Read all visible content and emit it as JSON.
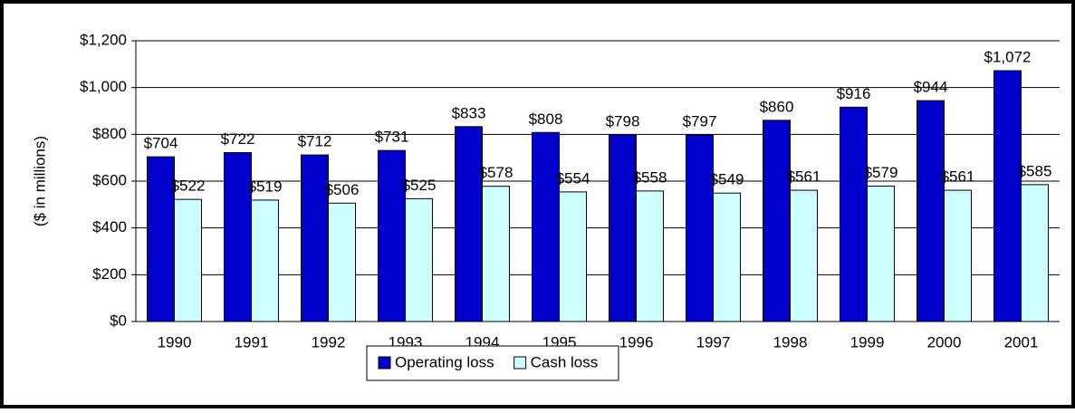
{
  "chart_data": {
    "type": "bar",
    "y_label": "($ in millions)",
    "categories": [
      "1990",
      "1991",
      "1992",
      "1993",
      "1994",
      "1995",
      "1996",
      "1997",
      "1998",
      "1999",
      "2000",
      "2001"
    ],
    "series": [
      {
        "name": "Operating loss",
        "color": "#0000cc",
        "values": [
          704,
          722,
          712,
          731,
          833,
          808,
          798,
          797,
          860,
          916,
          944,
          1072
        ],
        "value_labels": [
          "$704",
          "$722",
          "$712",
          "$731",
          "$833",
          "$808",
          "$798",
          "$797",
          "$860",
          "$916",
          "$944",
          "$1,072"
        ]
      },
      {
        "name": "Cash loss",
        "color": "#ccffff",
        "values": [
          522,
          519,
          506,
          525,
          578,
          554,
          558,
          549,
          561,
          579,
          561,
          585
        ],
        "value_labels": [
          "$522",
          "$519",
          "$506",
          "$525",
          "$578",
          "$554",
          "$558",
          "$549",
          "$561",
          "$579",
          "$561",
          "$585"
        ]
      }
    ],
    "ylim": [
      0,
      1200
    ],
    "yticks": [
      {
        "value": 0,
        "label": "$0"
      },
      {
        "value": 200,
        "label": "$200"
      },
      {
        "value": 400,
        "label": "$400"
      },
      {
        "value": 600,
        "label": "$600"
      },
      {
        "value": 800,
        "label": "$800"
      },
      {
        "value": 1000,
        "label": "$1,000"
      },
      {
        "value": 1200,
        "label": "$1,200"
      }
    ],
    "grid": true
  }
}
